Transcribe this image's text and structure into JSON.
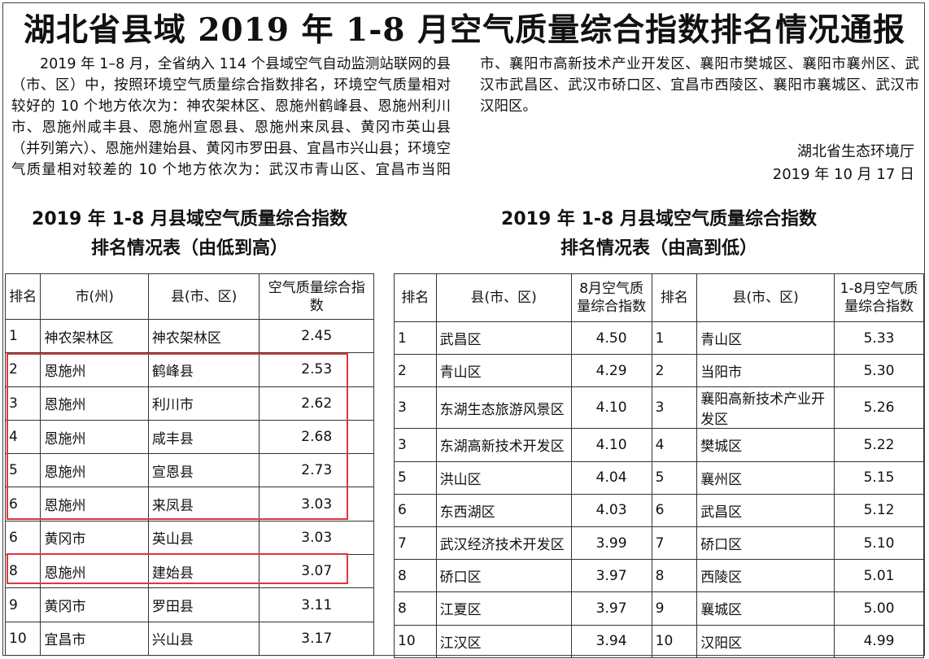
{
  "header": {
    "title": "湖北省县域 2019 年 1-8 月空气质量综合指数排名情况通报"
  },
  "body": {
    "paragraph": "2019 年 1–8 月，全省纳入 114 个县域空气自动监测站联网的县（市、区）中，按照环境空气质量综合指数排名，环境空气质量相对较好的 10 个地方依次为：神农架林区、恩施州鹤峰县、恩施州利川市、恩施州咸丰县、恩施州宣恩县、恩施州来凤县、黄冈市英山县（并列第六）、恩施州建始县、黄冈市罗田县、宜昌市兴山县；环境空气质量相对较差的 10 个地方依次为：武汉市青山区、宜昌市当阳市、襄阳市高新技术产业开发区、襄阳市樊城区、襄阳市襄州区、武汉市武昌区、武汉市硚口区、宜昌市西陵区、襄阳市襄城区、武汉市汉阳区。",
    "issuer": "湖北省生态环境厅",
    "date": "2019 年 10 月 17 日"
  },
  "left_table": {
    "title": [
      "2019 年 1-8 月县域空气质量综合指数",
      "排名情况表（由低到高）"
    ],
    "headers": [
      "排名",
      "市(州)",
      "县(市、区)",
      "空气质量综合指数"
    ],
    "rows": [
      [
        "1",
        "神农架林区",
        "神农架林区",
        "2.45"
      ],
      [
        "2",
        "恩施州",
        "鹤峰县",
        "2.53"
      ],
      [
        "3",
        "恩施州",
        "利川市",
        "2.62"
      ],
      [
        "4",
        "恩施州",
        "咸丰县",
        "2.68"
      ],
      [
        "5",
        "恩施州",
        "宣恩县",
        "2.73"
      ],
      [
        "6",
        "恩施州",
        "来凤县",
        "3.03"
      ],
      [
        "6",
        "黄冈市",
        "英山县",
        "3.03"
      ],
      [
        "8",
        "恩施州",
        "建始县",
        "3.07"
      ],
      [
        "9",
        "黄冈市",
        "罗田县",
        "3.11"
      ],
      [
        "10",
        "宜昌市",
        "兴山县",
        "3.17"
      ]
    ]
  },
  "right_table": {
    "title": [
      "2019 年 1-8 月县域空气质量综合指数",
      "排名情况表（由高到低）"
    ],
    "headers": [
      "排名",
      "县(市、区)",
      "8月空气质量综合指数",
      "排名",
      "县(市、区)",
      "1-8月空气质量综合指数"
    ],
    "rows": [
      [
        "1",
        "武昌区",
        "4.50",
        "1",
        "青山区",
        "5.33"
      ],
      [
        "2",
        "青山区",
        "4.29",
        "2",
        "当阳市",
        "5.30"
      ],
      [
        "3",
        "东湖生态旅游风景区",
        "4.10",
        "3",
        "襄阳高新技术产业开发区",
        "5.26"
      ],
      [
        "3",
        "东湖高新技术开发区",
        "4.10",
        "4",
        "樊城区",
        "5.22"
      ],
      [
        "5",
        "洪山区",
        "4.04",
        "5",
        "襄州区",
        "5.15"
      ],
      [
        "6",
        "东西湖区",
        "4.03",
        "6",
        "武昌区",
        "5.12"
      ],
      [
        "7",
        "武汉经济技术开发区",
        "3.99",
        "7",
        "硚口区",
        "5.10"
      ],
      [
        "8",
        "硚口区",
        "3.97",
        "8",
        "西陵区",
        "5.01"
      ],
      [
        "8",
        "江夏区",
        "3.97",
        "9",
        "襄城区",
        "5.00"
      ],
      [
        "10",
        "江汉区",
        "3.94",
        "10",
        "汉阳区",
        "4.99"
      ]
    ]
  }
}
